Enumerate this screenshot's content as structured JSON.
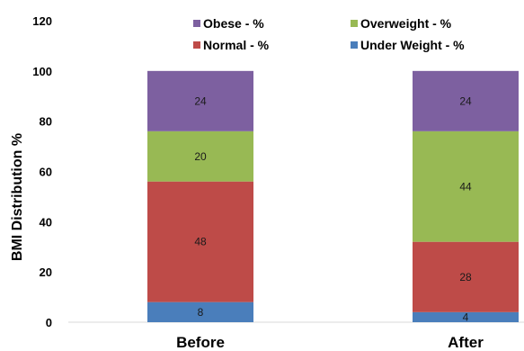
{
  "chart_data": {
    "type": "bar",
    "stacked": true,
    "title": "",
    "xlabel": "",
    "ylabel": "BMI Distribution %",
    "ylim": [
      0,
      120
    ],
    "yticks": [
      0,
      20,
      40,
      60,
      80,
      100,
      120
    ],
    "grid": false,
    "legend_position": "top",
    "categories": [
      "Before",
      "After"
    ],
    "series": [
      {
        "name": "Under Weight - %",
        "color": "#4a7ebb",
        "values": [
          8,
          4
        ]
      },
      {
        "name": "Normal - %",
        "color": "#be4b48",
        "values": [
          48,
          28
        ]
      },
      {
        "name": "Overweight - %",
        "color": "#98b954",
        "values": [
          20,
          44
        ]
      },
      {
        "name": "Obese - %",
        "color": "#7d60a0",
        "values": [
          24,
          24
        ]
      }
    ],
    "legend_order": [
      3,
      2,
      1,
      0
    ]
  }
}
